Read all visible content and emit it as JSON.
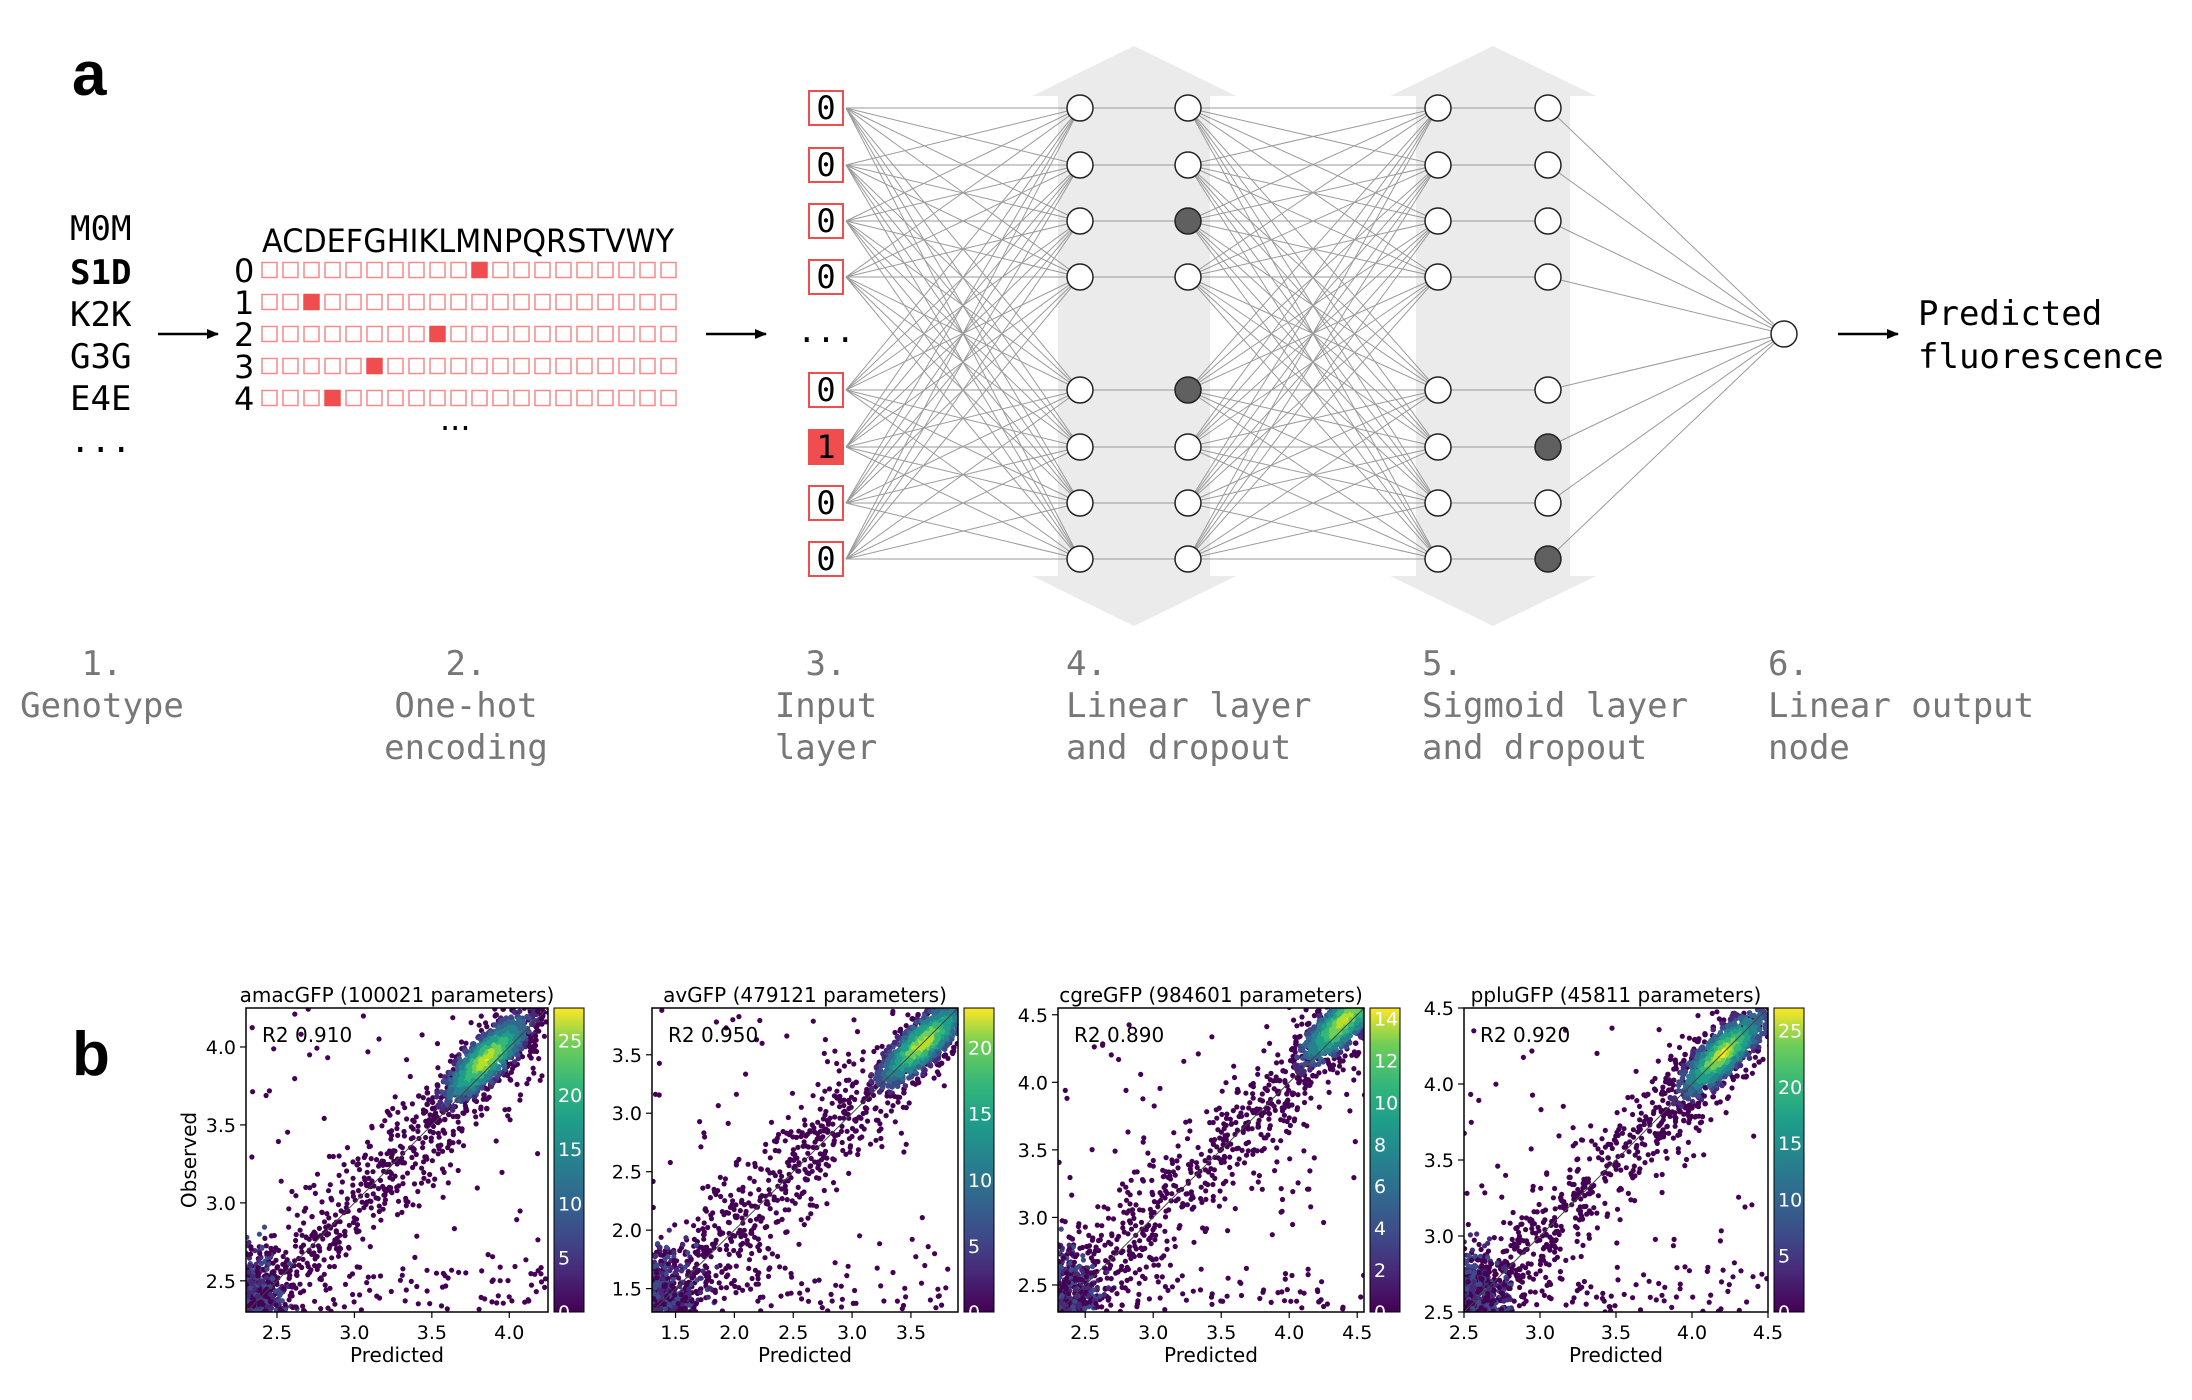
{
  "panel_a": {
    "letter": "a",
    "genotype": [
      {
        "text": "M0M",
        "bold": false
      },
      {
        "text": "S1D",
        "bold": true
      },
      {
        "text": "K2K",
        "bold": false
      },
      {
        "text": "G3G",
        "bold": false
      },
      {
        "text": "E4E",
        "bold": false
      },
      {
        "text": "...",
        "bold": false
      }
    ],
    "alphabet": "ACDEFGHIKLMNPQRSTVWY",
    "onehot_rows": [
      {
        "index": "0",
        "hot": 10
      },
      {
        "index": "1",
        "hot": 2
      },
      {
        "index": "2",
        "hot": 8
      },
      {
        "index": "3",
        "hot": 5
      },
      {
        "index": "4",
        "hot": 3
      }
    ],
    "onehot_ellipsis": "...",
    "input_values": [
      "0",
      "0",
      "0",
      "0",
      "...",
      "0",
      "1",
      "0",
      "0"
    ],
    "dropped_hidden1_layer2": [
      2,
      4
    ],
    "dropped_hidden2_layer2": [
      5,
      7
    ],
    "output_text": [
      "Predicted",
      "fluorescence"
    ],
    "steps": [
      {
        "number": "1.",
        "lines": [
          "Genotype"
        ]
      },
      {
        "number": "2.",
        "lines": [
          "One-hot",
          "encoding"
        ]
      },
      {
        "number": "3.",
        "lines": [
          "Input",
          "layer"
        ]
      },
      {
        "number": "4.",
        "lines": [
          "Linear layer",
          "and dropout"
        ]
      },
      {
        "number": "5.",
        "lines": [
          "Sigmoid layer",
          "and dropout"
        ]
      },
      {
        "number": "6.",
        "lines": [
          "Linear output",
          "node"
        ]
      }
    ],
    "colors": {
      "hot": "#f04e4e",
      "cell_border": "#f48a8a",
      "dropped": "#606060",
      "band": "#ebebeb"
    }
  },
  "panel_b": {
    "letter": "b",
    "chart_data": [
      {
        "type": "scatter",
        "title": "amacGFP (100021 parameters)",
        "xlabel": "Predicted",
        "ylabel": "Observed",
        "r2": "R2 0.910",
        "xlim": [
          2.3,
          4.25
        ],
        "ylim": [
          2.3,
          4.25
        ],
        "xticks": [
          "2.5",
          "3.0",
          "3.5",
          "4.0"
        ],
        "yticks": [
          "2.5",
          "3.0",
          "3.5",
          "4.0"
        ],
        "colorbar_ticks": [
          "0",
          "5",
          "10",
          "15",
          "20",
          "25"
        ],
        "colorbar_max": 28,
        "dense_center": [
          3.85,
          3.92
        ]
      },
      {
        "type": "scatter",
        "title": "avGFP (479121 parameters)",
        "xlabel": "Predicted",
        "ylabel": "",
        "r2": "R2 0.950",
        "xlim": [
          1.3,
          3.9
        ],
        "ylim": [
          1.3,
          3.9
        ],
        "xticks": [
          "1.5",
          "2.0",
          "2.5",
          "3.0",
          "3.5"
        ],
        "yticks": [
          "1.5",
          "2.0",
          "2.5",
          "3.0",
          "3.5"
        ],
        "colorbar_ticks": [
          "0",
          "5",
          "10",
          "15",
          "20"
        ],
        "colorbar_max": 23,
        "dense_center": [
          3.6,
          3.6
        ]
      },
      {
        "type": "scatter",
        "title": "cgreGFP (984601 parameters)",
        "xlabel": "Predicted",
        "ylabel": "",
        "r2": "R2 0.890",
        "xlim": [
          2.3,
          4.55
        ],
        "ylim": [
          2.3,
          4.55
        ],
        "xticks": [
          "2.5",
          "3.0",
          "3.5",
          "4.0",
          "4.5"
        ],
        "yticks": [
          "2.5",
          "3.0",
          "3.5",
          "4.0",
          "4.5"
        ],
        "colorbar_ticks": [
          "0",
          "2",
          "4",
          "6",
          "8",
          "10",
          "12",
          "14"
        ],
        "colorbar_max": 14.5,
        "dense_center": [
          4.4,
          4.45
        ]
      },
      {
        "type": "scatter",
        "title": "ppluGFP (45811 parameters)",
        "xlabel": "Predicted",
        "ylabel": "",
        "r2": "R2 0.920",
        "xlim": [
          2.5,
          4.5
        ],
        "ylim": [
          2.5,
          4.5
        ],
        "xticks": [
          "2.5",
          "3.0",
          "3.5",
          "4.0",
          "4.5"
        ],
        "yticks": [
          "2.5",
          "3.0",
          "3.5",
          "4.0",
          "4.5"
        ],
        "colorbar_ticks": [
          "0",
          "5",
          "10",
          "15",
          "20",
          "25"
        ],
        "colorbar_max": 27,
        "dense_center": [
          4.2,
          4.2
        ]
      }
    ]
  }
}
